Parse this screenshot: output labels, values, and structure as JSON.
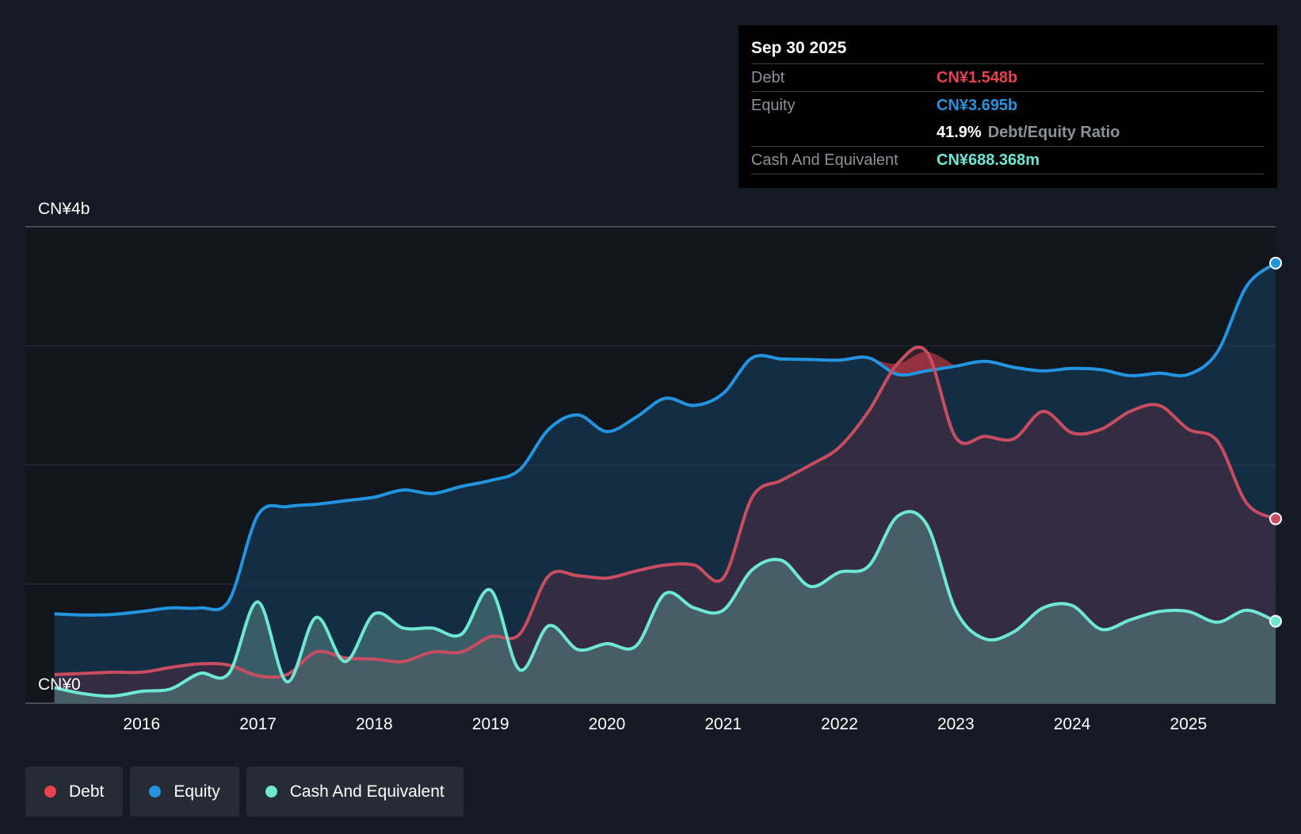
{
  "tooltip": {
    "date": "Sep 30 2025",
    "debt_label": "Debt",
    "debt_value": "CN¥1.548b",
    "equity_label": "Equity",
    "equity_value": "CN¥3.695b",
    "ratio_value": "41.9%",
    "ratio_label": "Debt/Equity Ratio",
    "cash_label": "Cash And Equivalent",
    "cash_value": "CN¥688.368m"
  },
  "legend": [
    {
      "label": "Debt",
      "color": "#e5434f"
    },
    {
      "label": "Equity",
      "color": "#2394df"
    },
    {
      "label": "Cash And Equivalent",
      "color": "#6ee7d5"
    }
  ],
  "colors": {
    "debt": "#e5434f",
    "debt_line": "#c94d61",
    "equity": "#2394df",
    "cash": "#6ee7d5",
    "background": "#151b24",
    "plot_background": "#11161d"
  },
  "chart_data": {
    "type": "area",
    "y_axis_labels": {
      "top": "CN¥4b",
      "bottom": "CN¥0"
    },
    "ylim": [
      0,
      4.0
    ],
    "xlim": [
      2015.0,
      2025.75
    ],
    "x_ticks": [
      "2016",
      "2017",
      "2018",
      "2019",
      "2020",
      "2021",
      "2022",
      "2023",
      "2024",
      "2025"
    ],
    "grid": true,
    "legend_position": "bottom-left",
    "series": [
      {
        "name": "Equity",
        "x": [
          2015.25,
          2015.5,
          2015.75,
          2016.0,
          2016.25,
          2016.5,
          2016.75,
          2017.0,
          2017.25,
          2017.5,
          2017.75,
          2018.0,
          2018.25,
          2018.5,
          2018.75,
          2019.0,
          2019.25,
          2019.5,
          2019.75,
          2020.0,
          2020.25,
          2020.5,
          2020.75,
          2021.0,
          2021.25,
          2021.5,
          2021.75,
          2022.0,
          2022.25,
          2022.5,
          2022.75,
          2023.0,
          2023.25,
          2023.5,
          2023.75,
          2024.0,
          2024.25,
          2024.5,
          2024.75,
          2025.0,
          2025.25,
          2025.5,
          2025.75
        ],
        "values": [
          0.75,
          0.74,
          0.745,
          0.77,
          0.8,
          0.8,
          0.86,
          1.58,
          1.65,
          1.67,
          1.7,
          1.73,
          1.79,
          1.76,
          1.82,
          1.87,
          1.96,
          2.3,
          2.42,
          2.28,
          2.4,
          2.56,
          2.5,
          2.6,
          2.9,
          2.89,
          2.885,
          2.88,
          2.9,
          2.76,
          2.79,
          2.83,
          2.87,
          2.82,
          2.79,
          2.81,
          2.8,
          2.75,
          2.77,
          2.76,
          2.95,
          3.5,
          3.695
        ]
      },
      {
        "name": "Debt",
        "x": [
          2015.25,
          2015.5,
          2015.75,
          2016.0,
          2016.25,
          2016.5,
          2016.75,
          2017.0,
          2017.25,
          2017.5,
          2017.75,
          2018.0,
          2018.25,
          2018.5,
          2018.75,
          2019.0,
          2019.25,
          2019.5,
          2019.75,
          2020.0,
          2020.25,
          2020.5,
          2020.75,
          2021.0,
          2021.25,
          2021.5,
          2021.75,
          2022.0,
          2022.25,
          2022.5,
          2022.75,
          2023.0,
          2023.25,
          2023.5,
          2023.75,
          2024.0,
          2024.25,
          2024.5,
          2024.75,
          2025.0,
          2025.25,
          2025.5,
          2025.75
        ],
        "values": [
          0.24,
          0.25,
          0.26,
          0.26,
          0.3,
          0.33,
          0.32,
          0.23,
          0.24,
          0.43,
          0.38,
          0.37,
          0.35,
          0.43,
          0.43,
          0.56,
          0.58,
          1.07,
          1.07,
          1.05,
          1.11,
          1.16,
          1.16,
          1.05,
          1.73,
          1.87,
          2.0,
          2.15,
          2.45,
          2.85,
          2.95,
          2.23,
          2.24,
          2.22,
          2.45,
          2.27,
          2.3,
          2.45,
          2.5,
          2.3,
          2.2,
          1.68,
          1.548
        ]
      },
      {
        "name": "Cash And Equivalent",
        "x": [
          2015.25,
          2015.5,
          2015.75,
          2016.0,
          2016.25,
          2016.5,
          2016.75,
          2017.0,
          2017.25,
          2017.5,
          2017.75,
          2018.0,
          2018.25,
          2018.5,
          2018.75,
          2019.0,
          2019.25,
          2019.5,
          2019.75,
          2020.0,
          2020.25,
          2020.5,
          2020.75,
          2021.0,
          2021.25,
          2021.5,
          2021.75,
          2022.0,
          2022.25,
          2022.5,
          2022.75,
          2023.0,
          2023.25,
          2023.5,
          2023.75,
          2024.0,
          2024.25,
          2024.5,
          2024.75,
          2025.0,
          2025.25,
          2025.5,
          2025.75
        ],
        "values": [
          0.13,
          0.08,
          0.06,
          0.1,
          0.12,
          0.25,
          0.25,
          0.85,
          0.18,
          0.72,
          0.35,
          0.75,
          0.63,
          0.63,
          0.58,
          0.95,
          0.28,
          0.65,
          0.45,
          0.5,
          0.48,
          0.92,
          0.8,
          0.78,
          1.12,
          1.2,
          0.98,
          1.1,
          1.15,
          1.57,
          1.5,
          0.78,
          0.54,
          0.6,
          0.8,
          0.82,
          0.62,
          0.7,
          0.77,
          0.77,
          0.68,
          0.78,
          0.688
        ]
      }
    ]
  }
}
